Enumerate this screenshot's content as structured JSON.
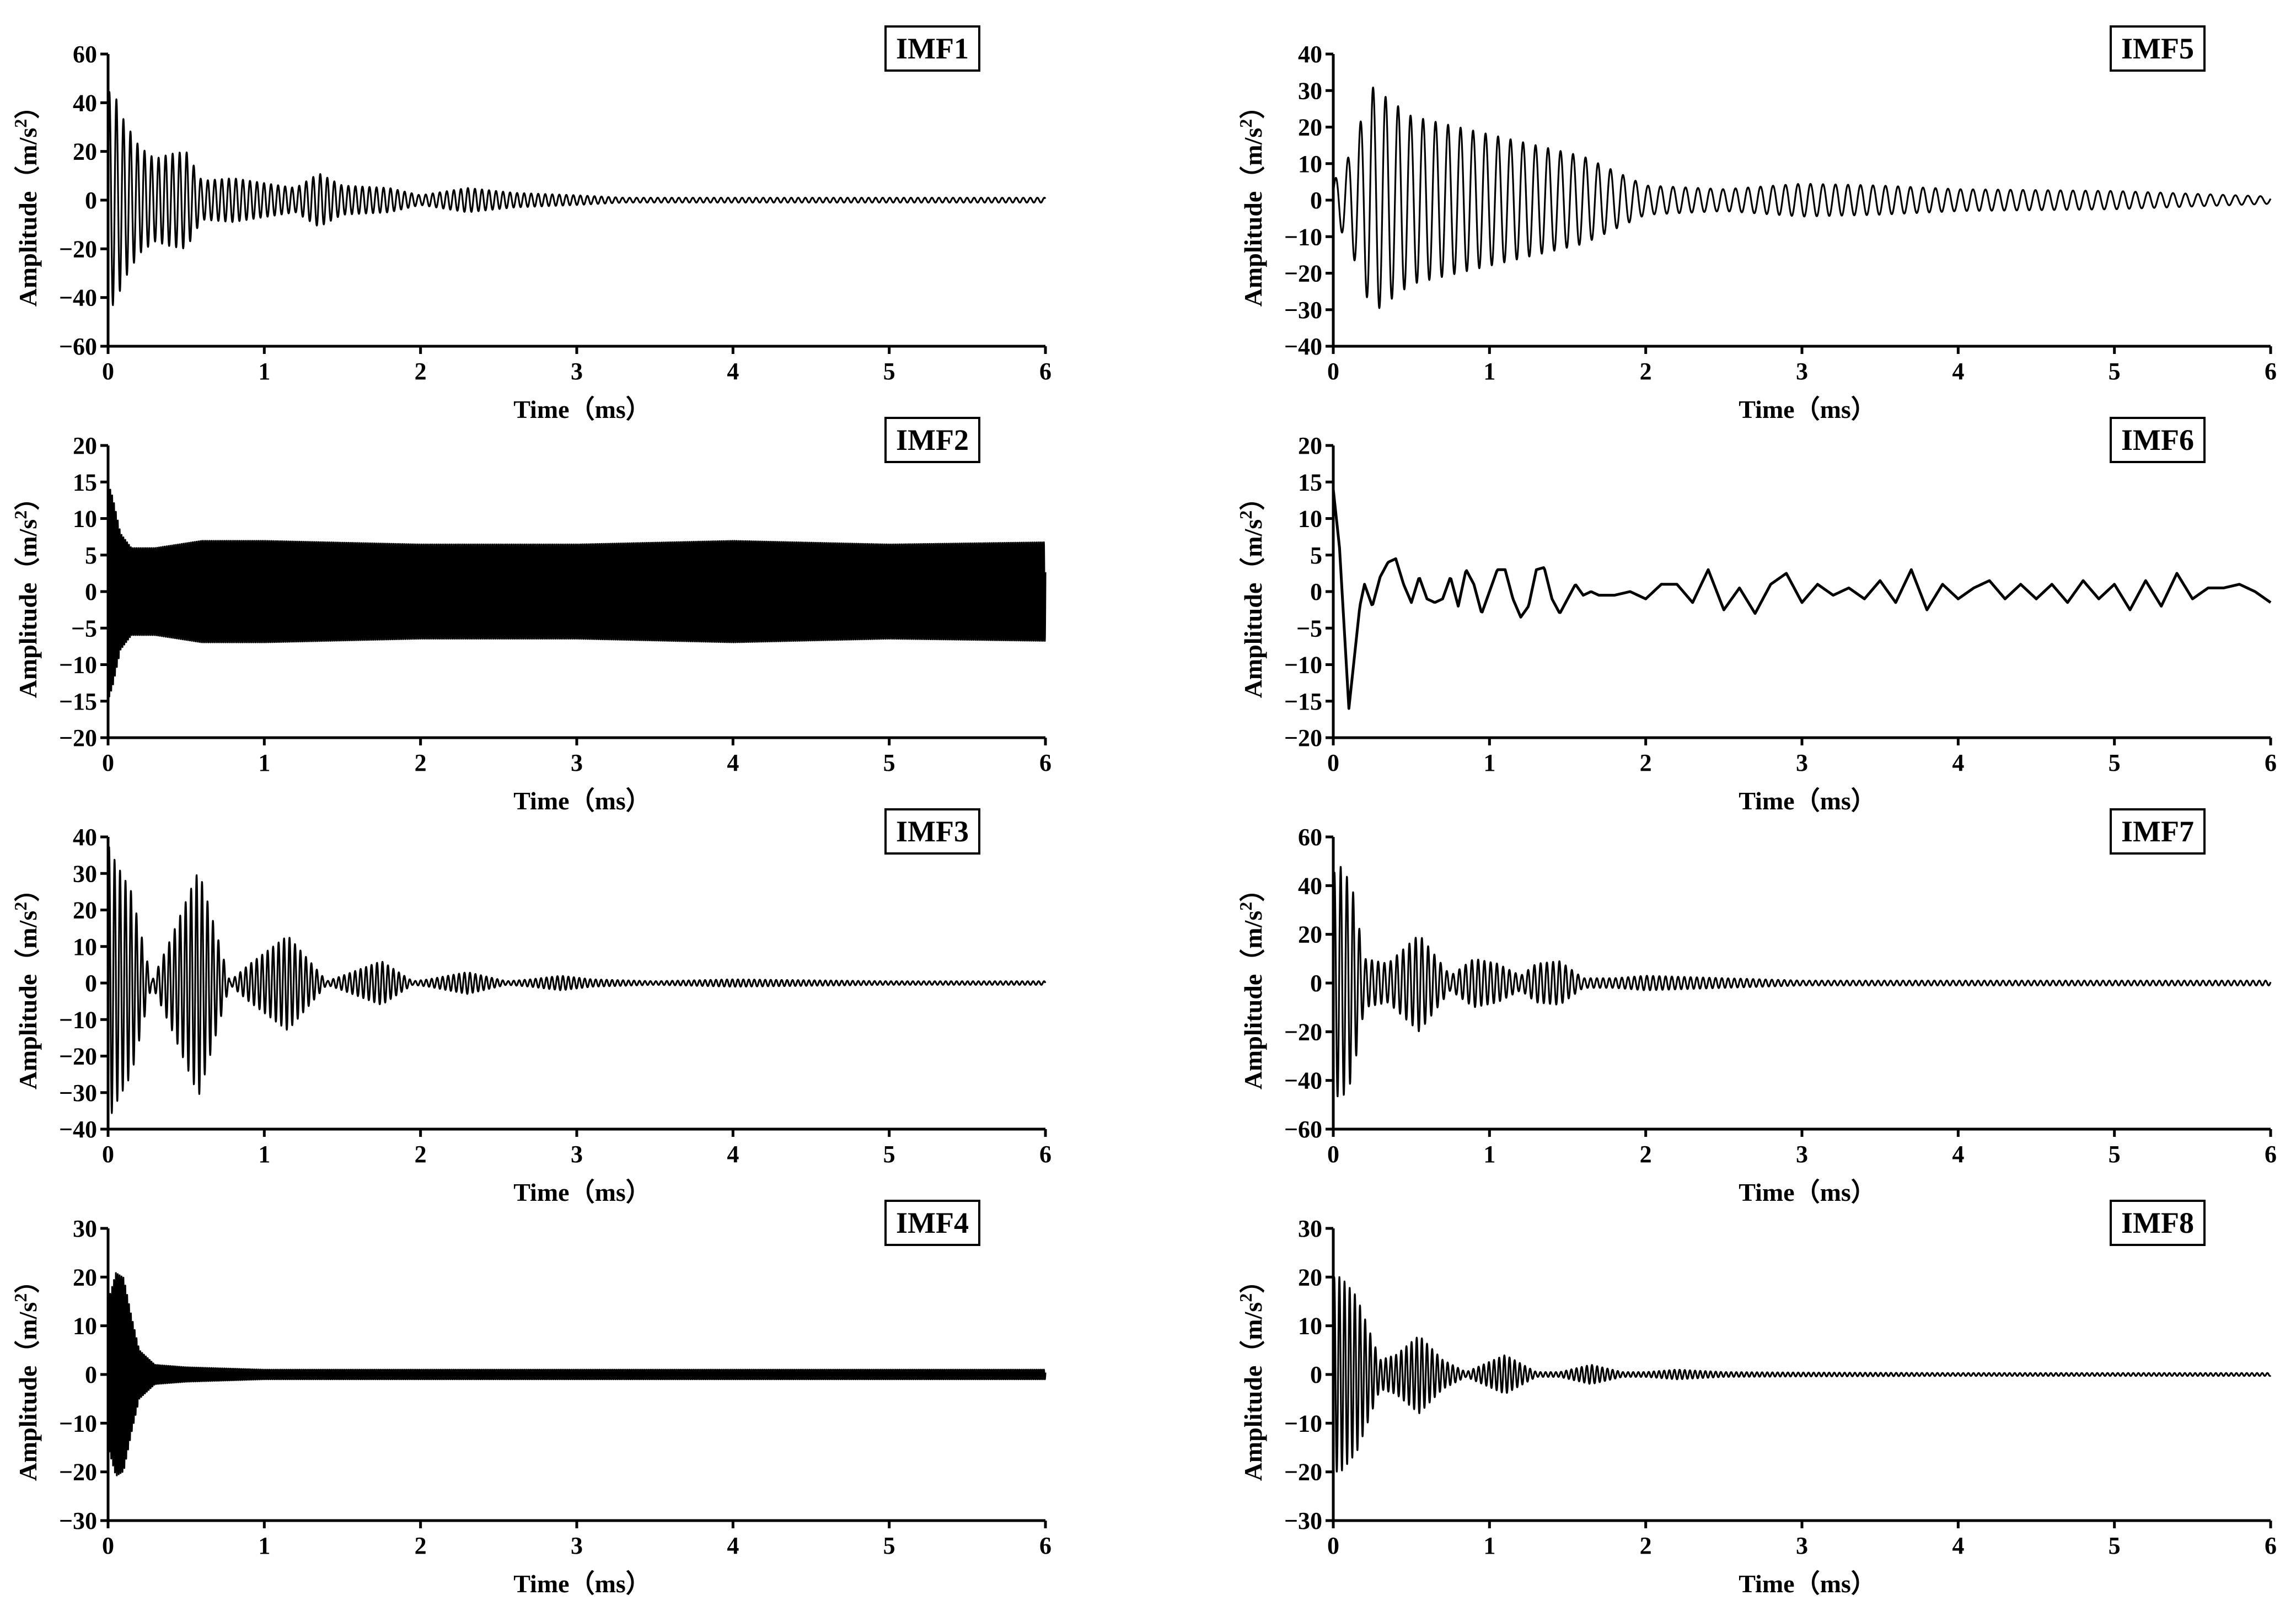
{
  "chart_data": [
    {
      "type": "line",
      "title": "IMF1",
      "xlabel": "Time（ms）",
      "ylabel": "Amplitude（m/s2）",
      "ylabel_base": "Amplitude（m/s",
      "ylabel_sup": "2",
      "ylabel_end": "）",
      "xlim": [
        0,
        6
      ],
      "ylim": [
        -60,
        60
      ],
      "xticks": [
        "0",
        "1",
        "2",
        "3",
        "4",
        "5",
        "6"
      ],
      "yticks": [
        "-60",
        "-40",
        "-20",
        "0",
        "20",
        "40",
        "60"
      ],
      "grid": false,
      "legend": "none",
      "series": [
        {
          "x": [
            0,
            0.05,
            0.1,
            0.2,
            0.3,
            0.4,
            0.5,
            0.6,
            0.8,
            1.0,
            1.2,
            1.35,
            1.5,
            1.8,
            2.0,
            2.3,
            2.6,
            3.0,
            3.3,
            4.0,
            5.0,
            6.0
          ],
          "envelope": [
            45,
            42,
            33,
            22,
            17,
            19,
            20,
            8,
            9,
            7,
            5,
            11,
            6,
            5,
            2,
            5,
            3,
            2,
            1,
            1,
            1,
            1
          ],
          "period": 0.045
        }
      ]
    },
    {
      "type": "line",
      "title": "IMF2",
      "xlabel": "Time（ms）",
      "ylabel": "Amplitude（m/s2）",
      "ylabel_base": "Amplitude（m/s",
      "ylabel_sup": "2",
      "ylabel_end": "）",
      "xlim": [
        0,
        6
      ],
      "ylim": [
        -20,
        20
      ],
      "xticks": [
        "0",
        "1",
        "2",
        "3",
        "4",
        "5",
        "6"
      ],
      "yticks": [
        "-20",
        "-15",
        "-10",
        "-5",
        "0",
        "5",
        "10",
        "15",
        "20"
      ],
      "grid": false,
      "legend": "none",
      "series": [
        {
          "x": [
            0,
            0.03,
            0.08,
            0.15,
            0.3,
            0.6,
            1.0,
            2.0,
            3.0,
            4.0,
            5.0,
            6.0
          ],
          "envelope": [
            15,
            13,
            8,
            6,
            6,
            7,
            7,
            6.5,
            6.5,
            7,
            6.5,
            6.8
          ],
          "period": 0.012
        }
      ]
    },
    {
      "type": "line",
      "title": "IMF3",
      "xlabel": "Time（ms）",
      "ylabel": "Amplitude（m/s2）",
      "ylabel_base": "Amplitude（m/s",
      "ylabel_sup": "2",
      "ylabel_end": "）",
      "xlim": [
        0,
        6
      ],
      "ylim": [
        -40,
        40
      ],
      "xticks": [
        "0",
        "1",
        "2",
        "3",
        "4",
        "5",
        "6"
      ],
      "yticks": [
        "-40",
        "-30",
        "-20",
        "-10",
        "0",
        "10",
        "20",
        "30",
        "40"
      ],
      "grid": false,
      "legend": "none",
      "series": [
        {
          "x": [
            0,
            0.05,
            0.15,
            0.28,
            0.4,
            0.58,
            0.78,
            0.9,
            1.15,
            1.4,
            1.5,
            1.75,
            1.95,
            2.05,
            2.3,
            2.55,
            2.7,
            2.9,
            3.1,
            3.5,
            4.0,
            5.0,
            6.0
          ],
          "envelope": [
            38,
            33,
            25,
            0.5,
            12,
            31,
            0.5,
            5,
            13,
            0.5,
            2,
            6,
            0.5,
            1,
            3,
            0.5,
            1,
            2,
            1,
            0.5,
            1,
            0.5,
            0.5
          ],
          "period": 0.035
        }
      ]
    },
    {
      "type": "line",
      "title": "IMF4",
      "xlabel": "Time（ms）",
      "ylabel": "Amplitude（m/s2）",
      "ylabel_base": "Amplitude（m/s",
      "ylabel_sup": "2",
      "ylabel_end": "）",
      "xlim": [
        0,
        6
      ],
      "ylim": [
        -30,
        30
      ],
      "xticks": [
        "0",
        "1",
        "2",
        "3",
        "4",
        "5",
        "6"
      ],
      "yticks": [
        "-30",
        "-20",
        "-10",
        "0",
        "10",
        "20",
        "30"
      ],
      "grid": false,
      "legend": "none",
      "series": [
        {
          "x": [
            0,
            0.05,
            0.1,
            0.15,
            0.2,
            0.3,
            0.5,
            1.0,
            2.0,
            3.0,
            4.0,
            5.0,
            6.0
          ],
          "envelope": [
            15,
            21,
            20,
            12,
            5,
            2,
            1.5,
            1,
            1,
            1,
            1,
            1,
            1
          ],
          "period": 0.012
        }
      ]
    },
    {
      "type": "line",
      "title": "IMF5",
      "xlabel": "Time（ms）",
      "ylabel": "Amplitude（m/s2）",
      "ylabel_base": "Amplitude（m/s",
      "ylabel_sup": "2",
      "ylabel_end": "）",
      "xlim": [
        0,
        6
      ],
      "ylim": [
        -40,
        40
      ],
      "xticks": [
        "0",
        "1",
        "2",
        "3",
        "4",
        "5",
        "6"
      ],
      "yticks": [
        "-40",
        "-30",
        "-20",
        "-10",
        "0",
        "10",
        "20",
        "30",
        "40"
      ],
      "grid": false,
      "legend": "none",
      "series": [
        {
          "x": [
            0,
            0.1,
            0.25,
            0.5,
            0.8,
            1.2,
            1.6,
            1.8,
            2.0,
            2.5,
            3.0,
            3.5,
            4.0,
            5.0,
            6.0
          ],
          "envelope": [
            5,
            12,
            31,
            23,
            20,
            16,
            12,
            8,
            4,
            3,
            4.5,
            4,
            3,
            2.5,
            1
          ],
          "period": 0.08
        }
      ]
    },
    {
      "type": "line",
      "title": "IMF6",
      "xlabel": "Time（ms）",
      "ylabel": "Amplitude（m/s2）",
      "ylabel_base": "Amplitude（m/s",
      "ylabel_sup": "2",
      "ylabel_end": "）",
      "xlim": [
        0,
        6
      ],
      "ylim": [
        -20,
        20
      ],
      "xticks": [
        "0",
        "1",
        "2",
        "3",
        "4",
        "5",
        "6"
      ],
      "yticks": [
        "-20",
        "-15",
        "-10",
        "-5",
        "0",
        "5",
        "10",
        "15",
        "20"
      ],
      "grid": false,
      "legend": "none",
      "series": [
        {
          "x": [
            0,
            0.04,
            0.1,
            0.17,
            0.2,
            0.25,
            0.3,
            0.35,
            0.4,
            0.45,
            0.5,
            0.55,
            0.6,
            0.65,
            0.7,
            0.75,
            0.8,
            0.85,
            0.9,
            0.95,
            1.0,
            1.05,
            1.1,
            1.15,
            1.2,
            1.25,
            1.3,
            1.35,
            1.4,
            1.45,
            1.5,
            1.55,
            1.6,
            1.65,
            1.7,
            1.8,
            1.9,
            2.0,
            2.1,
            2.2,
            2.3,
            2.4,
            2.5,
            2.6,
            2.7,
            2.8,
            2.9,
            3.0,
            3.1,
            3.2,
            3.3,
            3.4,
            3.5,
            3.6,
            3.7,
            3.8,
            3.9,
            4.0,
            4.1,
            4.2,
            4.3,
            4.4,
            4.5,
            4.6,
            4.7,
            4.8,
            4.9,
            5.0,
            5.1,
            5.2,
            5.3,
            5.4,
            5.5,
            5.6,
            5.7,
            5.8,
            5.9,
            6.0
          ],
          "y": [
            14,
            6,
            -16,
            -2,
            1,
            -2,
            2,
            4,
            4.5,
            1,
            -1.5,
            2,
            -1,
            -1.5,
            -1,
            2,
            -2,
            3,
            1,
            -3,
            0,
            3,
            3,
            -1,
            -3.5,
            -2,
            3,
            3.3,
            -1,
            -3,
            -1,
            1,
            -0.5,
            0,
            -0.5,
            -0.5,
            0,
            -1,
            1,
            1,
            -1.5,
            3,
            -2.5,
            0.5,
            -3,
            1,
            2.5,
            -1.5,
            1,
            -0.5,
            0.5,
            -1,
            1.5,
            -1.5,
            3,
            -2.5,
            1,
            -1,
            0.5,
            1.5,
            -1,
            1,
            -1,
            1,
            -1.5,
            1.5,
            -1,
            1,
            -2.5,
            1.5,
            -2,
            2.5,
            -1,
            0.5,
            0.5,
            1,
            0,
            -1.5
          ]
        }
      ]
    },
    {
      "type": "line",
      "title": "IMF7",
      "xlabel": "Time（ms）",
      "ylabel": "Amplitude（m/s2）",
      "ylabel_base": "Amplitude（m/s",
      "ylabel_sup": "2",
      "ylabel_end": "）",
      "xlim": [
        0,
        6
      ],
      "ylim": [
        -60,
        60
      ],
      "xticks": [
        "0",
        "1",
        "2",
        "3",
        "4",
        "5",
        "6"
      ],
      "yticks": [
        "-60",
        "-40",
        "-20",
        "0",
        "20",
        "40",
        "60"
      ],
      "grid": false,
      "legend": "none",
      "series": [
        {
          "x": [
            0,
            0.05,
            0.12,
            0.2,
            0.35,
            0.55,
            0.75,
            0.9,
            1.05,
            1.2,
            1.3,
            1.45,
            1.6,
            1.8,
            2.0,
            2.5,
            3.0,
            4.0,
            5.0,
            6.0
          ],
          "envelope": [
            45,
            48,
            40,
            10,
            8,
            20,
            3,
            10,
            8,
            3,
            8,
            9,
            2,
            2,
            3,
            2,
            1,
            1,
            1,
            1
          ],
          "period": 0.04
        }
      ]
    },
    {
      "type": "line",
      "title": "IMF8",
      "xlabel": "Time（ms）",
      "ylabel": "Amplitude（m/s2）",
      "ylabel_base": "Amplitude（m/s",
      "ylabel_sup": "2",
      "ylabel_end": "）",
      "xlim": [
        0,
        6
      ],
      "ylim": [
        -30,
        30
      ],
      "xticks": [
        "0",
        "1",
        "2",
        "3",
        "4",
        "5",
        "6"
      ],
      "yticks": [
        "-30",
        "-20",
        "-10",
        "0",
        "10",
        "20",
        "30"
      ],
      "grid": false,
      "legend": "none",
      "series": [
        {
          "x": [
            0,
            0.05,
            0.15,
            0.3,
            0.4,
            0.55,
            0.7,
            0.85,
            1.1,
            1.3,
            1.45,
            1.65,
            1.85,
            2.0,
            2.2,
            2.5,
            3.0,
            4.0,
            5.0,
            6.0
          ],
          "envelope": [
            20,
            20,
            16,
            3,
            4,
            8,
            3,
            0.5,
            4,
            0.5,
            0.5,
            2,
            0.5,
            0.5,
            1,
            0.5,
            0.4,
            0.3,
            0.3,
            0.3
          ],
          "period": 0.033
        }
      ]
    }
  ]
}
